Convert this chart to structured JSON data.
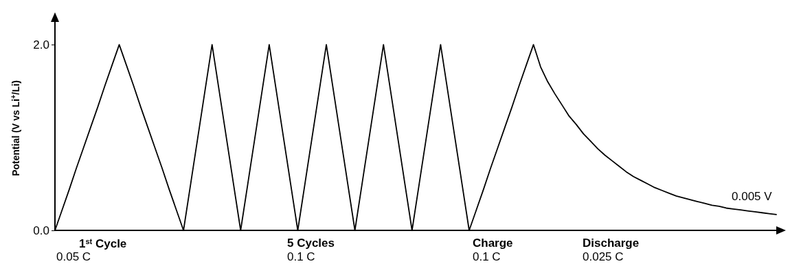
{
  "chart_data": {
    "type": "line",
    "ylabel": "Potential (V vs Li$^{+}$/Li)",
    "categories": [
      null,
      null,
      null,
      null,
      null,
      null,
      null,
      null,
      null,
      null,
      null,
      null,
      null,
      null,
      null,
      null,
      null,
      null,
      null,
      null,
      null,
      null,
      null,
      null,
      null,
      null,
      null,
      null,
      null,
      null,
      null,
      null,
      null,
      null,
      null,
      null,
      null,
      null,
      null,
      null,
      null,
      null,
      null,
      null,
      null,
      null,
      null,
      null,
      null,
      null,
      null,
      null,
      null,
      null,
      null,
      null,
      null,
      null,
      null,
      null,
      null,
      null,
      null,
      null,
      null,
      null,
      null,
      null,
      null,
      null,
      null,
      null,
      null,
      null,
      null,
      null,
      null,
      null,
      null,
      null,
      null,
      null,
      null,
      null,
      null,
      null,
      null,
      null,
      null,
      null,
      null,
      null,
      null,
      null,
      null,
      null,
      null,
      null,
      null,
      null,
      null,
      null
    ],
    "series": [
      {
        "color": "#000000",
        "values": [
          0,
          0.22,
          0.44,
          0.67,
          0.89,
          1.11,
          1.33,
          1.56,
          1.78,
          2.0,
          1.78,
          1.56,
          1.33,
          1.11,
          0.89,
          0.67,
          0.44,
          0.22,
          0,
          0.5,
          1,
          1.5,
          2,
          1.5,
          1,
          0.5,
          0,
          0.5,
          1,
          1.5,
          2,
          1.5,
          1,
          0.5,
          0,
          0.5,
          1,
          1.5,
          2,
          1.5,
          1,
          0.5,
          0,
          0.5,
          1,
          1.5,
          2,
          1.5,
          1,
          0.5,
          0,
          0.5,
          1,
          1.5,
          2,
          1.5,
          1,
          0.5,
          0,
          0.22,
          0.44,
          0.67,
          0.89,
          1.11,
          1.33,
          1.56,
          1.78,
          2.0,
          1.76,
          1.6,
          1.47,
          1.35,
          1.23,
          1.14,
          1.04,
          0.96,
          0.88,
          0.81,
          0.75,
          0.69,
          0.63,
          0.58,
          0.54,
          0.5,
          0.46,
          0.43,
          0.4,
          0.37,
          0.35,
          0.33,
          0.31,
          0.29,
          0.27,
          0.26,
          0.24,
          0.23,
          0.22,
          0.21,
          0.2,
          0.19,
          0.18,
          0.17
        ]
      }
    ],
    "ylim": [
      0,
      2.2
    ],
    "yticks": [
      {
        "value": 0,
        "label": "0.0"
      },
      {
        "value": 2,
        "label": "2.0"
      }
    ],
    "tick_labels": "y",
    "grid": false,
    "marker": "none",
    "line_style": "solid",
    "annotations": [
      "1$^{st}$ Cycle",
      "0.05 C",
      "5 Cycles",
      "0.1 C",
      "Charge",
      "0.1 C",
      "Discharge",
      "0.025 C",
      "0.005 V"
    ]
  }
}
